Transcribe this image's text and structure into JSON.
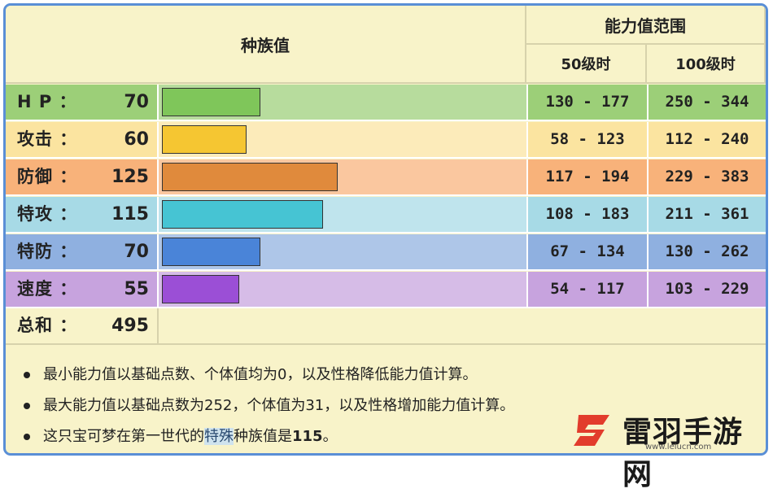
{
  "header": {
    "base_stats": "种族值",
    "range": "能力值范围",
    "lv50": "50级时",
    "lv100": "100级时"
  },
  "stats": [
    {
      "label": "H P ：",
      "value": "70",
      "base": 70,
      "range50": "130 - 177",
      "range100": "250 - 344",
      "row_color": "#9ccf78",
      "bar_color": "#7fc65a"
    },
    {
      "label": "攻击 ：",
      "value": "60",
      "base": 60,
      "range50": "58 - 123",
      "range100": "112 - 240",
      "row_color": "#fbe4a0",
      "bar_color": "#f5c632"
    },
    {
      "label": "防御 ：",
      "value": "125",
      "base": 125,
      "range50": "117 - 194",
      "range100": "229 - 383",
      "row_color": "#f8b27a",
      "bar_color": "#e08a3c"
    },
    {
      "label": "特攻 ：",
      "value": "115",
      "base": 115,
      "range50": "108 - 183",
      "range100": "211 - 361",
      "row_color": "#a7dae6",
      "bar_color": "#46c4d3"
    },
    {
      "label": "特防 ：",
      "value": "70",
      "base": 70,
      "range50": "67 - 134",
      "range100": "130 - 262",
      "row_color": "#8fb0e0",
      "bar_color": "#4a84d8"
    },
    {
      "label": "速度 ：",
      "value": "55",
      "base": 55,
      "range50": "54 - 117",
      "range100": "103 - 229",
      "row_color": "#c7a3de",
      "bar_color": "#9b4fd6"
    }
  ],
  "total": {
    "label": "总和 ：",
    "value": "495"
  },
  "notes": {
    "n1": "最小能力值以基础点数、个体值均为0，以及性格降低能力值计算。",
    "n2": "最大能力值以基础点数为252，个体值为31，以及性格增加能力值计算。",
    "n3_a": "这只宝可梦在第一世代的",
    "n3_hl": "特殊",
    "n3_b": "种族值是",
    "n3_c": "115",
    "n3_d": "。"
  },
  "watermark": {
    "name": "雷羽手游网",
    "url": "www.leiucn.com",
    "icon": "leiyu-logo-icon"
  }
}
